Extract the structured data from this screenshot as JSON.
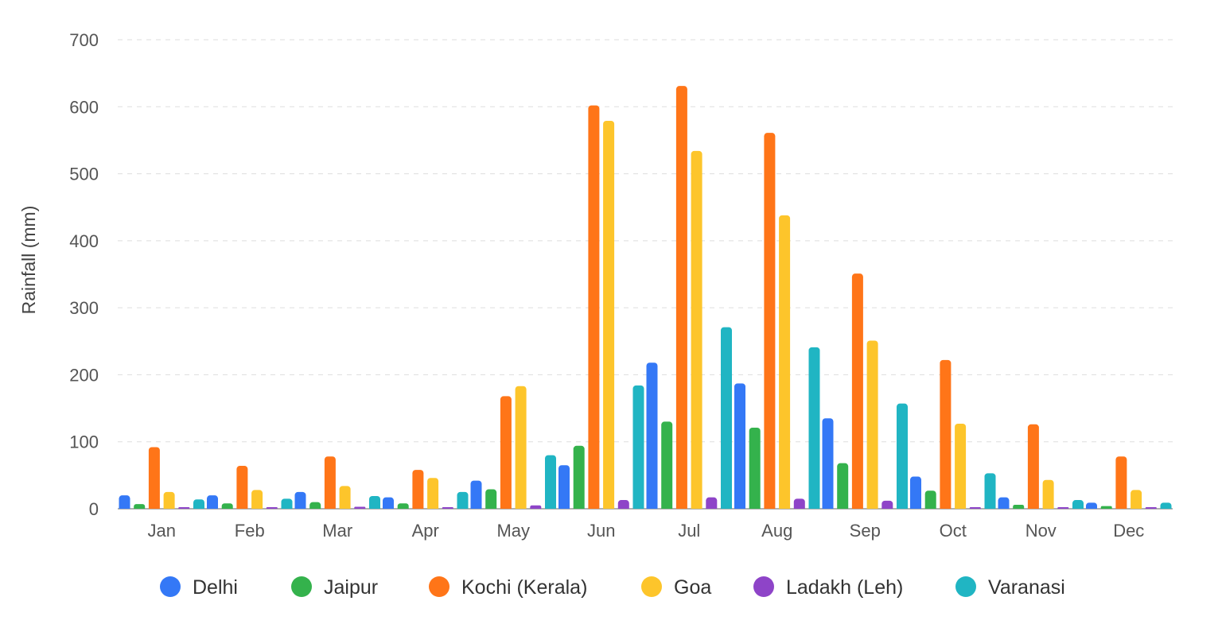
{
  "chart_data": {
    "type": "bar",
    "title": "",
    "xlabel": "",
    "ylabel": "Rainfall (mm)",
    "ylim": [
      0,
      700
    ],
    "yticks": [
      0,
      100,
      200,
      300,
      400,
      500,
      600,
      700
    ],
    "grid": true,
    "legend_position": "bottom",
    "categories": [
      "Jan",
      "Feb",
      "Mar",
      "Apr",
      "May",
      "Jun",
      "Jul",
      "Aug",
      "Sep",
      "Oct",
      "Nov",
      "Dec"
    ],
    "series": [
      {
        "name": "Delhi",
        "color": "#3478f6",
        "values": [
          20,
          20,
          25,
          17,
          42,
          65,
          218,
          187,
          135,
          48,
          17,
          9
        ]
      },
      {
        "name": "Jaipur",
        "color": "#34b24c",
        "values": [
          7,
          8,
          10,
          8,
          29,
          94,
          130,
          121,
          68,
          27,
          6,
          4
        ]
      },
      {
        "name": "Kochi (Kerala)",
        "color": "#ff7518",
        "values": [
          92,
          64,
          78,
          58,
          168,
          602,
          631,
          561,
          351,
          222,
          126,
          78
        ]
      },
      {
        "name": "Goa",
        "color": "#fdc52b",
        "values": [
          25,
          28,
          34,
          46,
          183,
          579,
          534,
          438,
          251,
          127,
          43,
          28
        ]
      },
      {
        "name": "Ladakh (Leh)",
        "color": "#8e44c8",
        "values": [
          2,
          2,
          3,
          2,
          5,
          13,
          17,
          15,
          12,
          2,
          1,
          1
        ]
      },
      {
        "name": "Varanasi",
        "color": "#20b5c3",
        "values": [
          14,
          15,
          19,
          25,
          80,
          184,
          271,
          241,
          157,
          53,
          13,
          9
        ]
      }
    ]
  }
}
